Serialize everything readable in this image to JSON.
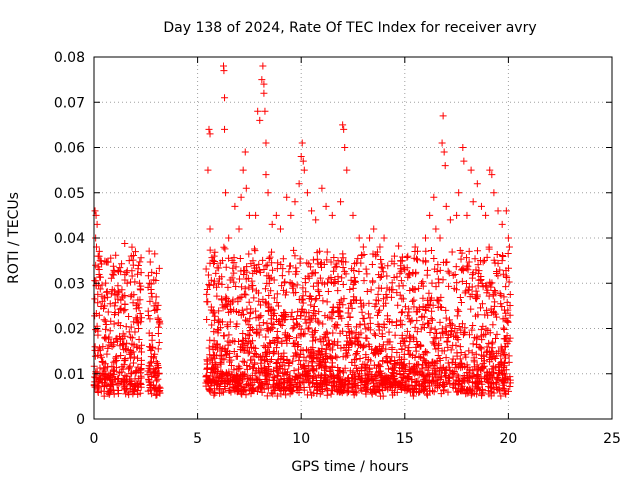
{
  "chart_data": {
    "type": "scatter",
    "title": "Day 138 of 2024, Rate Of TEC Index for receiver avry",
    "xlabel": "GPS time / hours",
    "ylabel": "ROTI / TECUs",
    "xlim": [
      0,
      25
    ],
    "ylim": [
      0,
      0.08
    ],
    "xticks": [
      0,
      5,
      10,
      15,
      20,
      25
    ],
    "yticks": [
      0,
      0.01,
      0.02,
      0.03,
      0.04,
      0.05,
      0.06,
      0.07,
      0.08
    ],
    "xtick_labels": [
      "0",
      "5",
      "10",
      "15",
      "20",
      "25"
    ],
    "ytick_labels": [
      "0",
      "0.01",
      "0.02",
      "0.03",
      "0.04",
      "0.05",
      "0.06",
      "0.07",
      "0.08"
    ],
    "grid": true,
    "marker": "+",
    "series_color": "#ff0000",
    "coverage": [
      {
        "start": 0.0,
        "end": 2.3
      },
      {
        "start": 2.6,
        "end": 3.2
      },
      {
        "start": 5.4,
        "end": 20.1
      }
    ],
    "points": [
      [
        0.05,
        0.046
      ],
      [
        0.1,
        0.045
      ],
      [
        0.15,
        0.043
      ],
      [
        0.08,
        0.04
      ],
      [
        0.12,
        0.038
      ],
      [
        0.2,
        0.036
      ],
      [
        0.3,
        0.035
      ],
      [
        0.4,
        0.026
      ],
      [
        0.5,
        0.025
      ],
      [
        0.6,
        0.028
      ],
      [
        0.9,
        0.032
      ],
      [
        1.0,
        0.025
      ],
      [
        1.2,
        0.028
      ],
      [
        1.4,
        0.027
      ],
      [
        1.6,
        0.03
      ],
      [
        1.7,
        0.035
      ],
      [
        1.8,
        0.036
      ],
      [
        1.9,
        0.034
      ],
      [
        2.0,
        0.037
      ],
      [
        2.1,
        0.032
      ],
      [
        2.2,
        0.03
      ],
      [
        2.7,
        0.026
      ],
      [
        2.8,
        0.027
      ],
      [
        2.9,
        0.025
      ],
      [
        3.0,
        0.027
      ],
      [
        3.1,
        0.022
      ],
      [
        5.5,
        0.055
      ],
      [
        5.55,
        0.064
      ],
      [
        5.6,
        0.063
      ],
      [
        5.6,
        0.042
      ],
      [
        5.8,
        0.036
      ],
      [
        6.0,
        0.03
      ],
      [
        6.2,
        0.035
      ],
      [
        6.25,
        0.078
      ],
      [
        6.27,
        0.077
      ],
      [
        6.3,
        0.071
      ],
      [
        6.3,
        0.064
      ],
      [
        6.35,
        0.05
      ],
      [
        6.5,
        0.04
      ],
      [
        6.8,
        0.047
      ],
      [
        7.0,
        0.042
      ],
      [
        7.1,
        0.049
      ],
      [
        7.2,
        0.055
      ],
      [
        7.3,
        0.059
      ],
      [
        7.35,
        0.051
      ],
      [
        7.5,
        0.045
      ],
      [
        7.8,
        0.045
      ],
      [
        7.9,
        0.068
      ],
      [
        8.0,
        0.066
      ],
      [
        8.1,
        0.075
      ],
      [
        8.15,
        0.078
      ],
      [
        8.2,
        0.074
      ],
      [
        8.2,
        0.072
      ],
      [
        8.25,
        0.068
      ],
      [
        8.3,
        0.061
      ],
      [
        8.3,
        0.054
      ],
      [
        8.4,
        0.05
      ],
      [
        8.6,
        0.043
      ],
      [
        8.8,
        0.045
      ],
      [
        9.0,
        0.042
      ],
      [
        9.3,
        0.049
      ],
      [
        9.5,
        0.045
      ],
      [
        9.7,
        0.048
      ],
      [
        9.9,
        0.052
      ],
      [
        10.0,
        0.058
      ],
      [
        10.05,
        0.061
      ],
      [
        10.1,
        0.057
      ],
      [
        10.15,
        0.055
      ],
      [
        10.3,
        0.05
      ],
      [
        10.5,
        0.046
      ],
      [
        10.7,
        0.044
      ],
      [
        11.0,
        0.051
      ],
      [
        11.2,
        0.047
      ],
      [
        11.5,
        0.045
      ],
      [
        11.9,
        0.048
      ],
      [
        12.0,
        0.065
      ],
      [
        12.05,
        0.064
      ],
      [
        12.1,
        0.06
      ],
      [
        12.2,
        0.055
      ],
      [
        12.5,
        0.045
      ],
      [
        12.8,
        0.04
      ],
      [
        13.0,
        0.038
      ],
      [
        13.3,
        0.04
      ],
      [
        13.5,
        0.042
      ],
      [
        13.8,
        0.038
      ],
      [
        14.0,
        0.04
      ],
      [
        14.5,
        0.036
      ],
      [
        14.8,
        0.035
      ],
      [
        15.0,
        0.033
      ],
      [
        15.5,
        0.038
      ],
      [
        16.0,
        0.04
      ],
      [
        16.2,
        0.045
      ],
      [
        16.4,
        0.049
      ],
      [
        16.5,
        0.042
      ],
      [
        16.7,
        0.04
      ],
      [
        16.8,
        0.061
      ],
      [
        16.85,
        0.067
      ],
      [
        16.9,
        0.059
      ],
      [
        16.95,
        0.056
      ],
      [
        17.0,
        0.047
      ],
      [
        17.2,
        0.044
      ],
      [
        17.5,
        0.045
      ],
      [
        17.6,
        0.05
      ],
      [
        17.8,
        0.06
      ],
      [
        17.85,
        0.057
      ],
      [
        18.0,
        0.045
      ],
      [
        18.2,
        0.055
      ],
      [
        18.3,
        0.048
      ],
      [
        18.5,
        0.052
      ],
      [
        18.7,
        0.047
      ],
      [
        18.9,
        0.045
      ],
      [
        19.1,
        0.055
      ],
      [
        19.2,
        0.054
      ],
      [
        19.3,
        0.05
      ],
      [
        19.5,
        0.046
      ],
      [
        19.7,
        0.043
      ],
      [
        19.9,
        0.046
      ],
      [
        20.0,
        0.04
      ],
      [
        20.05,
        0.038
      ]
    ]
  }
}
